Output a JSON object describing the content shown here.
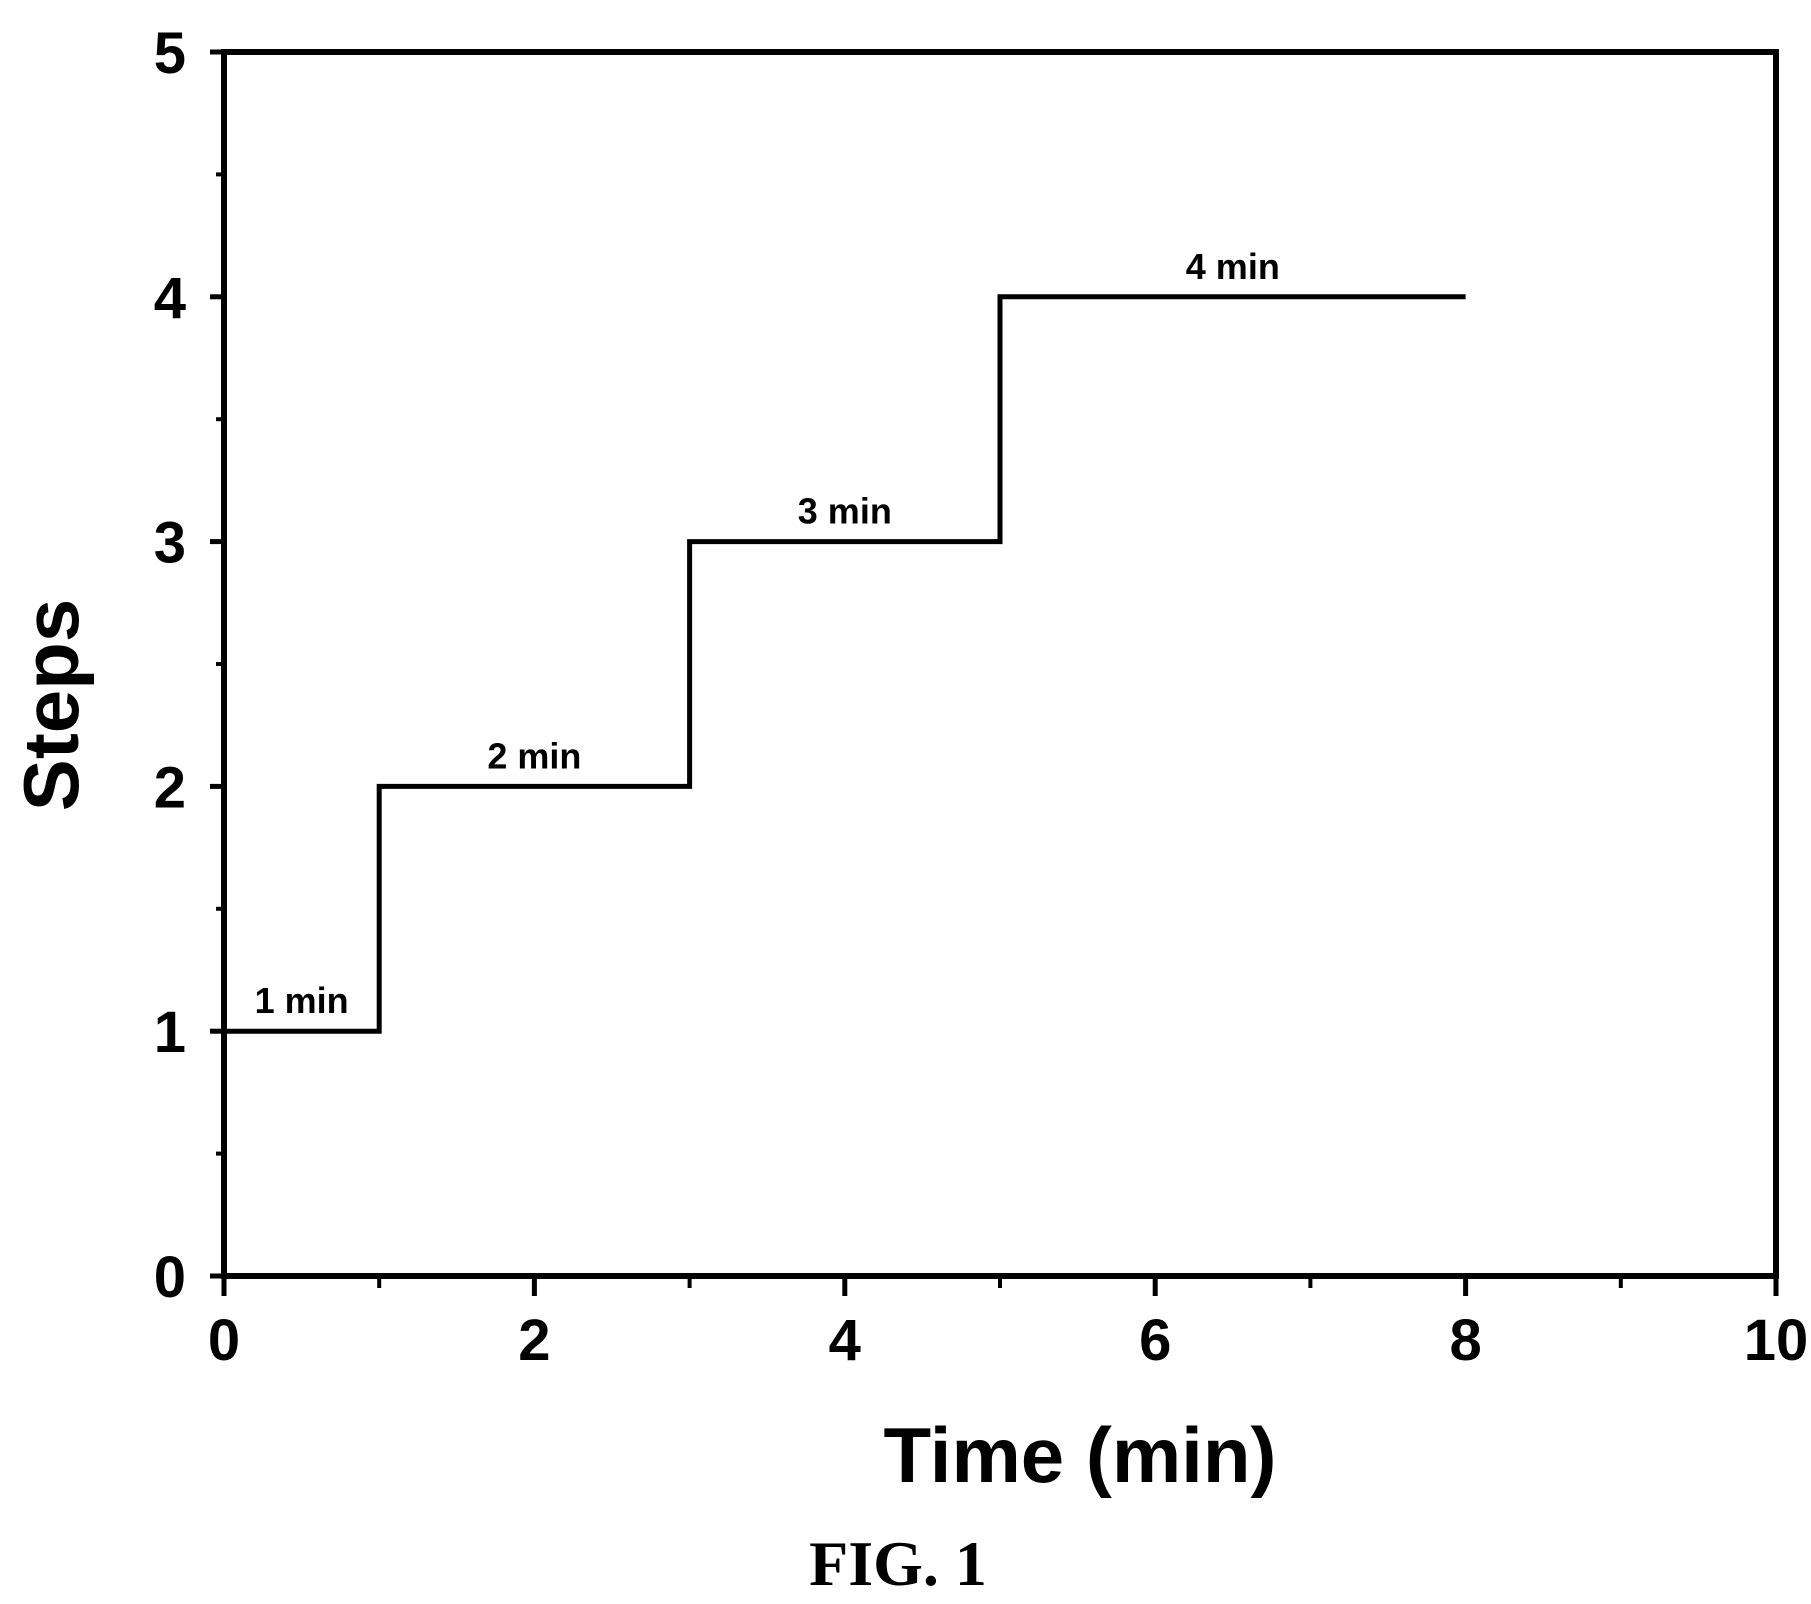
{
  "chart_data": {
    "type": "line",
    "xlabel": "Time (min)",
    "ylabel": "Steps",
    "xlim": [
      0,
      10
    ],
    "ylim": [
      0,
      5
    ],
    "xticks": [
      0,
      2,
      4,
      6,
      8,
      10
    ],
    "yticks": [
      0,
      1,
      2,
      3,
      4,
      5
    ],
    "grid": false,
    "series": [
      {
        "x": [
          0,
          1,
          1,
          3,
          3,
          5,
          5,
          8
        ],
        "y": [
          1,
          1,
          2,
          2,
          3,
          3,
          4,
          4
        ]
      }
    ],
    "annotations": [
      {
        "text": "1 min",
        "x": 0.5,
        "y": 1
      },
      {
        "text": "2 min",
        "x": 2.0,
        "y": 2
      },
      {
        "text": "3 min",
        "x": 4.0,
        "y": 3
      },
      {
        "text": "4 min",
        "x": 6.5,
        "y": 4
      }
    ]
  },
  "caption": "FIG. 1"
}
